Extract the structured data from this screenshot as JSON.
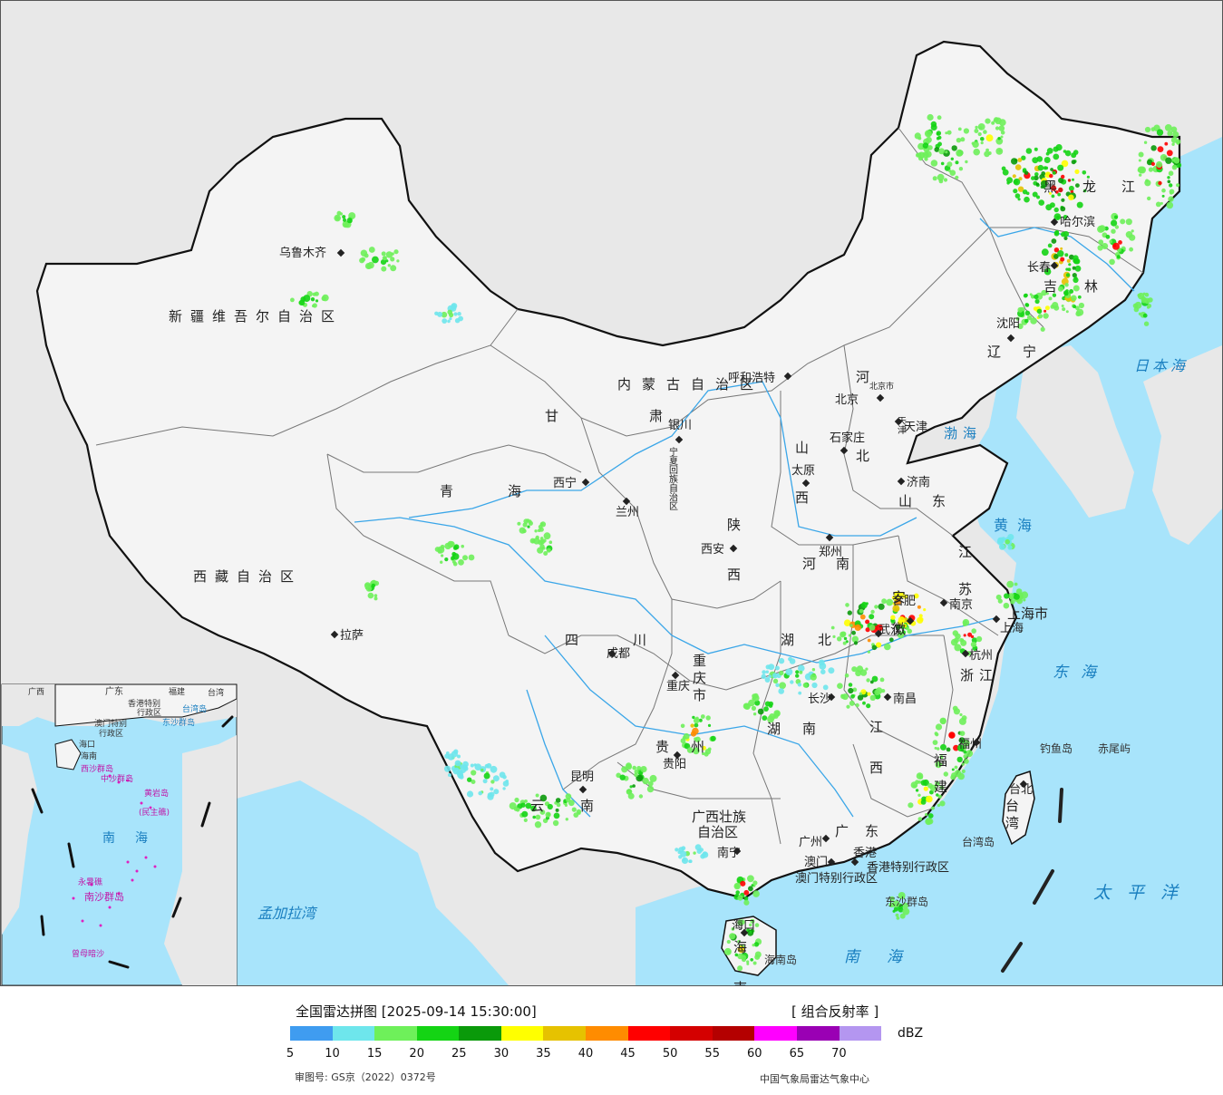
{
  "map": {
    "colors": {
      "ocean": "#a8e4fb",
      "neighbor": "#e8e8e8",
      "land": "#f4f4f4",
      "border": "#111111",
      "province_border": "#777777",
      "river": "#3aa6e8"
    },
    "province_labels": [
      {
        "name": "新疆维吾尔自治区",
        "spaced": true
      },
      {
        "name": "西藏自治区",
        "spaced": true
      },
      {
        "name": "青海",
        "spaced": true
      },
      {
        "name": "甘肃",
        "spaced": true
      },
      {
        "name": "内蒙古自治区",
        "spaced": true
      },
      {
        "name": "黑龙江",
        "spaced": true
      },
      {
        "name": "吉林",
        "spaced": true
      },
      {
        "name": "辽宁",
        "spaced": true
      },
      {
        "name": "河北",
        "spaced": true
      },
      {
        "name": "山西",
        "spaced": true
      },
      {
        "name": "山东",
        "spaced": true
      },
      {
        "name": "河南",
        "spaced": true
      },
      {
        "name": "陕西",
        "spaced": true
      },
      {
        "name": "四川",
        "spaced": true
      },
      {
        "name": "重庆市",
        "spaced": true
      },
      {
        "name": "湖北",
        "spaced": true
      },
      {
        "name": "湖南",
        "spaced": true
      },
      {
        "name": "江西",
        "spaced": true
      },
      {
        "name": "安徽",
        "spaced": true
      },
      {
        "name": "江苏",
        "spaced": true
      },
      {
        "name": "浙江",
        "spaced": true
      },
      {
        "name": "福建",
        "spaced": true
      },
      {
        "name": "上海市",
        "spaced": false
      },
      {
        "name": "贵州",
        "spaced": true
      },
      {
        "name": "云南",
        "spaced": true
      },
      {
        "name": "广西壮族",
        "spaced": false
      },
      {
        "name": "自治区",
        "spaced": false
      },
      {
        "name": "广东",
        "spaced": true
      },
      {
        "name": "海南",
        "spaced": true
      },
      {
        "name": "台湾",
        "spaced": true
      },
      {
        "name": "宁夏回族自治区",
        "spaced": false
      },
      {
        "name": "香港特别行政区",
        "spaced": false
      },
      {
        "name": "澳门特别行政区",
        "spaced": false
      },
      {
        "name": "北京市",
        "spaced": false
      },
      {
        "name": "天津",
        "spaced": false
      }
    ],
    "cities": [
      "乌鲁木齐",
      "拉萨",
      "西宁",
      "兰州",
      "银川",
      "呼和浩特",
      "北京",
      "天津",
      "石家庄",
      "太原",
      "济南",
      "郑州",
      "西安",
      "成都",
      "重庆",
      "贵阳",
      "昆明",
      "南宁",
      "广州",
      "澳门",
      "香港",
      "长沙",
      "武汉",
      "南昌",
      "合肥",
      "南京",
      "杭州",
      "上海",
      "福州",
      "台北",
      "哈尔滨",
      "长春",
      "沈阳",
      "海口"
    ],
    "sea_labels": [
      "日本海",
      "渤海",
      "黄海",
      "东海",
      "太平洋",
      "南海",
      "孟加拉湾"
    ],
    "islands": [
      "钓鱼岛",
      "赤尾屿",
      "台湾岛",
      "东沙群岛",
      "海南岛"
    ],
    "inset": {
      "labels": [
        "广西",
        "广东",
        "福建",
        "台湾",
        "香港特别",
        "行政区",
        "台湾岛",
        "澳门特别",
        "行政区",
        "东沙群岛",
        "海口",
        "海南",
        "西沙群岛",
        "中沙群岛",
        "黄岩岛",
        "(民主礁)",
        "南海",
        "永暑礁",
        "南沙群岛",
        "曾母暗沙"
      ]
    }
  },
  "legend": {
    "title": "全国雷达拼图 [2025-09-14 15:30:00]",
    "product": "[ 组合反射率 ]",
    "unit": "dBZ",
    "colors": [
      "#3f9cf0",
      "#6ee6ec",
      "#6ef05a",
      "#14d414",
      "#0a9a0a",
      "#ffff00",
      "#e6c200",
      "#ff8c00",
      "#ff0000",
      "#d40000",
      "#b40000",
      "#ff00ff",
      "#9a00b4",
      "#b496f0"
    ],
    "ticks": [
      "5",
      "10",
      "15",
      "20",
      "25",
      "30",
      "35",
      "40",
      "45",
      "50",
      "55",
      "60",
      "65",
      "70"
    ],
    "approval": "审图号: GS京（2022）0372号",
    "source": "中国气象局雷达气象中心"
  }
}
